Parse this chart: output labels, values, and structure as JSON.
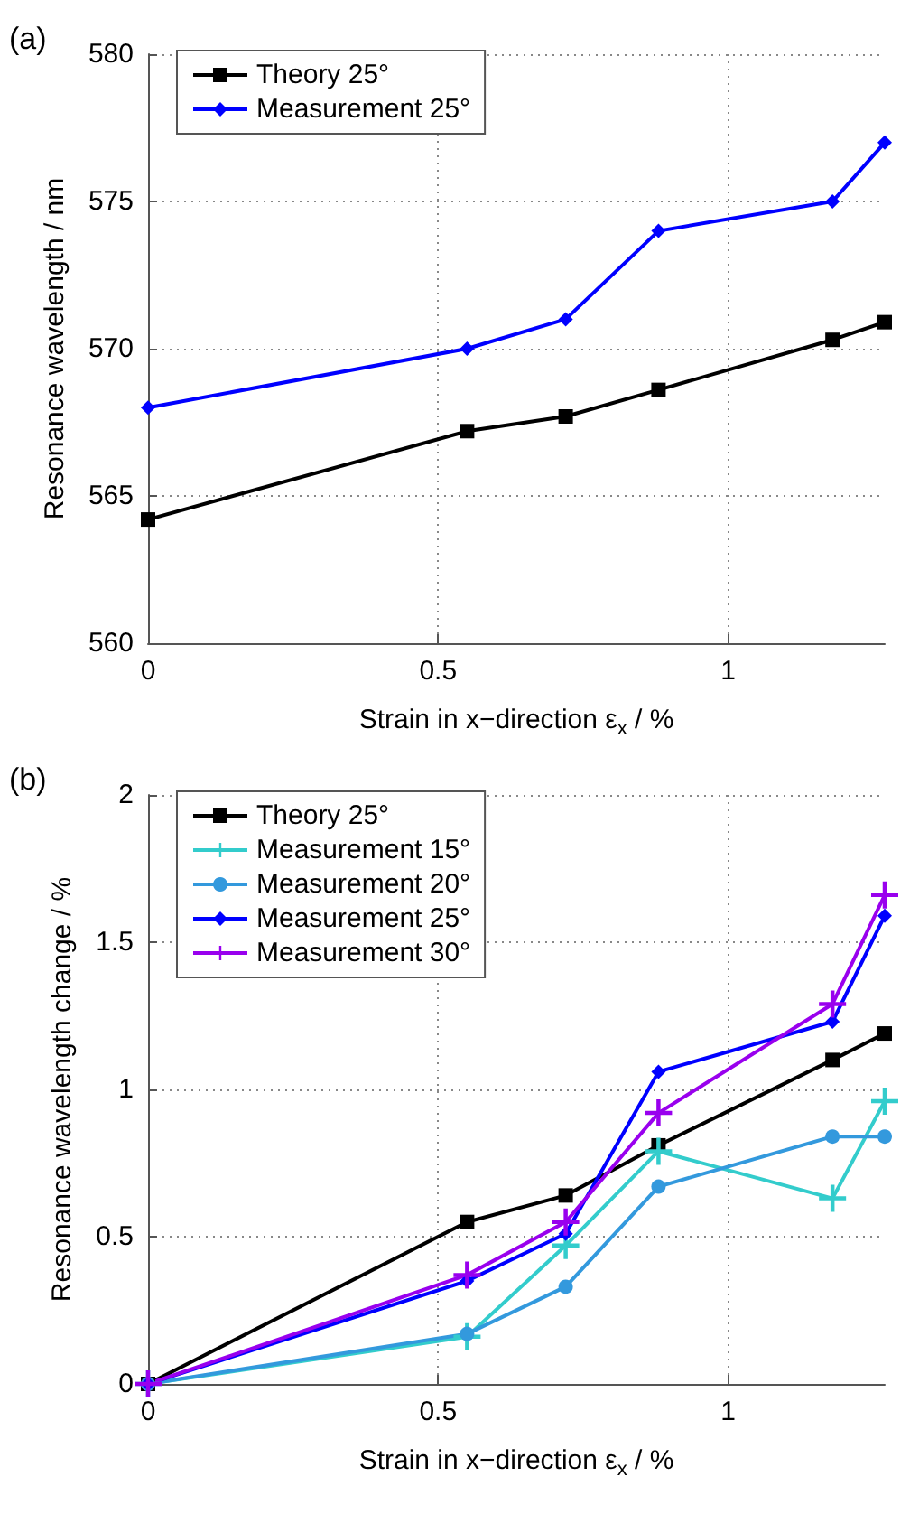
{
  "chart_data": [
    {
      "type": "line",
      "title": "(a)",
      "xlabel": "Strain in x−direction ε$_{x}$ / %",
      "ylabel": "Resonance wavelength / nm",
      "x": [
        0,
        0.55,
        0.72,
        0.88,
        1.18,
        1.27
      ],
      "xlim": [
        0,
        1.27
      ],
      "xticks": [
        0,
        0.5,
        1
      ],
      "ylim": [
        560,
        580
      ],
      "yticks": [
        560,
        565,
        570,
        575,
        580
      ],
      "grid": true,
      "legend": "top left",
      "line_style": "solid",
      "series": [
        {
          "name": "Theory 25°",
          "color": "#000000",
          "marker": "square",
          "values": [
            564.2,
            567.2,
            567.7,
            568.6,
            570.3,
            570.9
          ]
        },
        {
          "name": "Measurement 25°",
          "color": "#0000ff",
          "marker": "diamond",
          "values": [
            568,
            570,
            571,
            574,
            575,
            577
          ]
        }
      ]
    },
    {
      "type": "line",
      "title": "(b)",
      "xlabel": "Strain in x−direction ε$_{x}$ / %",
      "ylabel": "Resonance wavelength change / %",
      "x": [
        0,
        0.55,
        0.72,
        0.88,
        1.18,
        1.27
      ],
      "xlim": [
        0,
        1.27
      ],
      "xticks": [
        0,
        0.5,
        1
      ],
      "ylim": [
        0,
        2
      ],
      "yticks": [
        0,
        0.5,
        1,
        1.5,
        2
      ],
      "grid": true,
      "legend": "top left",
      "line_style": "solid",
      "series": [
        {
          "name": "Theory 25°",
          "color": "#000000",
          "marker": "square",
          "values": [
            0,
            0.55,
            0.64,
            0.81,
            1.1,
            1.19
          ]
        },
        {
          "name": "Measurement 15°",
          "color": "#33cccc",
          "marker": "cross",
          "values": [
            0,
            0.16,
            0.47,
            0.79,
            0.63,
            0.96
          ]
        },
        {
          "name": "Measurement 20°",
          "color": "#3399dd",
          "marker": "circle",
          "values": [
            0,
            0.17,
            0.33,
            0.67,
            0.84,
            0.84
          ]
        },
        {
          "name": "Measurement 25°",
          "color": "#0000ff",
          "marker": "diamond",
          "values": [
            0,
            0.35,
            0.51,
            1.06,
            1.23,
            1.59
          ]
        },
        {
          "name": "Measurement 30°",
          "color": "#9900ee",
          "marker": "cross",
          "values": [
            0,
            0.37,
            0.55,
            0.92,
            1.29,
            1.66
          ]
        }
      ]
    }
  ]
}
